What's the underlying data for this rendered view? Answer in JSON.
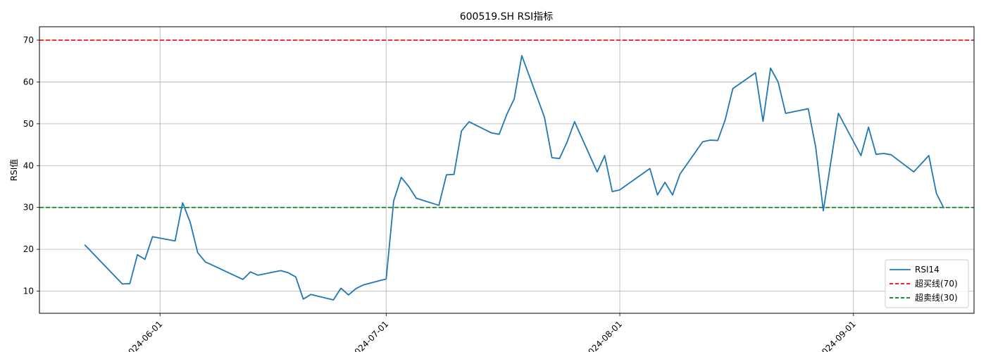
{
  "chart_data": {
    "type": "line",
    "title": "600519.SH RSI指标",
    "xlabel": "",
    "ylabel": "RSI值",
    "x_ticks": [
      "2024-06-01",
      "2024-07-01",
      "2024-08-01",
      "2024-09-01"
    ],
    "y_ticks": [
      10,
      20,
      30,
      40,
      50,
      60,
      70
    ],
    "xlim": [
      "2024-05-16",
      "2024-09-17"
    ],
    "ylim": [
      4.7,
      73.2
    ],
    "grid": true,
    "legend_position": "lower-right",
    "series": [
      {
        "name": "RSI14",
        "color": "#1f77b4",
        "style": "solid",
        "points": [
          [
            "2024-05-22",
            21.1
          ],
          [
            "2024-05-27",
            11.7
          ],
          [
            "2024-05-28",
            11.8
          ],
          [
            "2024-05-29",
            18.7
          ],
          [
            "2024-05-30",
            17.6
          ],
          [
            "2024-05-31",
            23.0
          ],
          [
            "2024-06-03",
            22.0
          ],
          [
            "2024-06-04",
            31.1
          ],
          [
            "2024-06-05",
            26.5
          ],
          [
            "2024-06-06",
            19.2
          ],
          [
            "2024-06-07",
            17.0
          ],
          [
            "2024-06-12",
            12.8
          ],
          [
            "2024-06-13",
            14.6
          ],
          [
            "2024-06-14",
            13.8
          ],
          [
            "2024-06-17",
            14.9
          ],
          [
            "2024-06-18",
            14.4
          ],
          [
            "2024-06-19",
            13.4
          ],
          [
            "2024-06-20",
            8.1
          ],
          [
            "2024-06-21",
            9.2
          ],
          [
            "2024-06-24",
            7.9
          ],
          [
            "2024-06-25",
            10.7
          ],
          [
            "2024-06-26",
            9.1
          ],
          [
            "2024-06-27",
            10.6
          ],
          [
            "2024-06-28",
            11.5
          ],
          [
            "2024-07-01",
            12.9
          ],
          [
            "2024-07-02",
            31.6
          ],
          [
            "2024-07-03",
            37.2
          ],
          [
            "2024-07-04",
            35.0
          ],
          [
            "2024-07-05",
            32.2
          ],
          [
            "2024-07-08",
            30.5
          ],
          [
            "2024-07-09",
            37.8
          ],
          [
            "2024-07-10",
            37.9
          ],
          [
            "2024-07-11",
            48.3
          ],
          [
            "2024-07-12",
            50.5
          ],
          [
            "2024-07-15",
            47.8
          ],
          [
            "2024-07-16",
            47.5
          ],
          [
            "2024-07-17",
            52.2
          ],
          [
            "2024-07-18",
            56.0
          ],
          [
            "2024-07-19",
            66.3
          ],
          [
            "2024-07-22",
            51.6
          ],
          [
            "2024-07-23",
            41.9
          ],
          [
            "2024-07-24",
            41.7
          ],
          [
            "2024-07-25",
            45.6
          ],
          [
            "2024-07-26",
            50.5
          ],
          [
            "2024-07-29",
            38.5
          ],
          [
            "2024-07-30",
            42.4
          ],
          [
            "2024-07-31",
            33.8
          ],
          [
            "2024-08-01",
            34.2
          ],
          [
            "2024-08-05",
            39.3
          ],
          [
            "2024-08-06",
            33.0
          ],
          [
            "2024-08-07",
            36.0
          ],
          [
            "2024-08-08",
            33.0
          ],
          [
            "2024-08-09",
            38.0
          ],
          [
            "2024-08-12",
            45.7
          ],
          [
            "2024-08-13",
            46.1
          ],
          [
            "2024-08-14",
            46.0
          ],
          [
            "2024-08-15",
            51.0
          ],
          [
            "2024-08-16",
            58.4
          ],
          [
            "2024-08-19",
            62.2
          ],
          [
            "2024-08-20",
            50.6
          ],
          [
            "2024-08-21",
            63.3
          ],
          [
            "2024-08-22",
            60.0
          ],
          [
            "2024-08-23",
            52.5
          ],
          [
            "2024-08-26",
            53.6
          ],
          [
            "2024-08-27",
            44.3
          ],
          [
            "2024-08-28",
            29.2
          ],
          [
            "2024-08-30",
            52.5
          ],
          [
            "2024-09-02",
            42.4
          ],
          [
            "2024-09-03",
            49.2
          ],
          [
            "2024-09-04",
            42.7
          ],
          [
            "2024-09-05",
            42.9
          ],
          [
            "2024-09-06",
            42.6
          ],
          [
            "2024-09-09",
            38.5
          ],
          [
            "2024-09-11",
            42.4
          ],
          [
            "2024-09-12",
            33.4
          ],
          [
            "2024-09-13",
            29.8
          ]
        ]
      }
    ],
    "reference_lines": [
      {
        "name": "超买线(70)",
        "value": 70,
        "color": "#ff0000",
        "style": "dashed"
      },
      {
        "name": "超卖线(30)",
        "value": 30,
        "color": "#008000",
        "style": "dashed"
      }
    ]
  }
}
